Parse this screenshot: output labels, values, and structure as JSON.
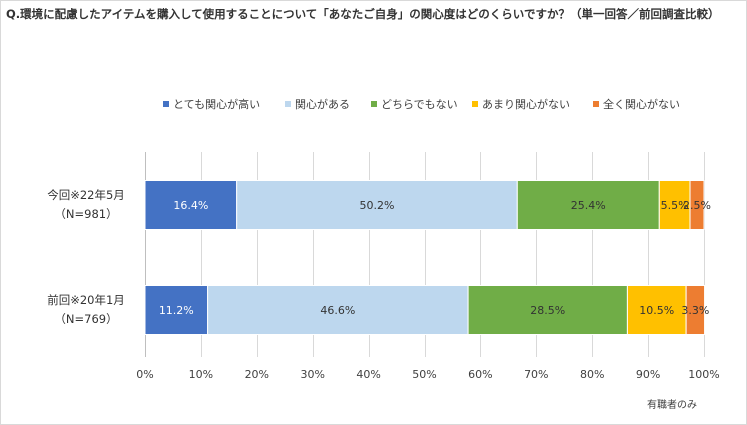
{
  "title": "Q.環境に配慮したアイテムを購入して使用することについて「あなたご自身」の関心度はどのくらいですか？（単一回答／前回調査比較）",
  "note": "有職者のみ",
  "chart_data": {
    "type": "bar",
    "orientation": "horizontal",
    "stacked": true,
    "percent": true,
    "categories": [
      {
        "line1": "今回※22年5月",
        "line2": "（N=981）"
      },
      {
        "line1": "前回※20年1月",
        "line2": "（N=769）"
      }
    ],
    "series": [
      {
        "name": "とても関心が高い",
        "color": "#4472c4",
        "label_color": "#ffffff",
        "values": [
          16.4,
          11.2
        ],
        "labels": [
          "16.4%",
          "11.2%"
        ]
      },
      {
        "name": "関心がある",
        "color": "#bdd7ee",
        "label_color": "#333333",
        "values": [
          50.2,
          46.6
        ],
        "labels": [
          "50.2%",
          "46.6%"
        ]
      },
      {
        "name": "どちらでもない",
        "color": "#70ad47",
        "label_color": "#333333",
        "values": [
          25.4,
          28.5
        ],
        "labels": [
          "25.4%",
          "28.5%"
        ]
      },
      {
        "name": "あまり関心がない",
        "color": "#ffc000",
        "label_color": "#333333",
        "values": [
          5.5,
          10.5
        ],
        "labels": [
          "5.5%",
          "10.5%"
        ]
      },
      {
        "name": "全く関心がない",
        "color": "#ed7d31",
        "label_color": "#333333",
        "values": [
          2.5,
          3.3
        ],
        "labels": [
          "2.5%",
          "3.3%"
        ]
      }
    ],
    "xlim": [
      0,
      100
    ],
    "xticks": [
      "0%",
      "10%",
      "20%",
      "30%",
      "40%",
      "50%",
      "60%",
      "70%",
      "80%",
      "90%",
      "100%"
    ],
    "legend_position": "top",
    "grid": true
  }
}
